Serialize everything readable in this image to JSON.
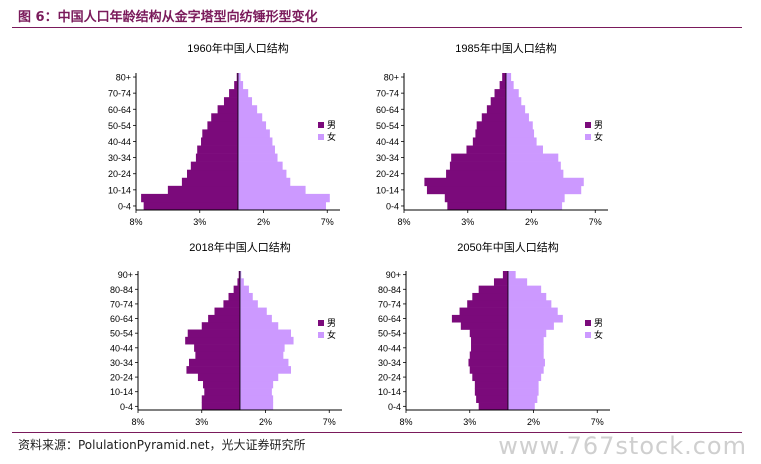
{
  "header": {
    "title": "图 6：中国人口年龄结构从金字塔型向纺锤形型变化"
  },
  "footer": {
    "source": "资料来源：PolulationPyramid.net，光大证券研究所"
  },
  "watermark": {
    "text": "www.767stock.com"
  },
  "colors": {
    "male": "#7b0a7b",
    "female": "#cc99ff",
    "accent": "#7a1a5b"
  },
  "chart_data": [
    {
      "type": "bar",
      "title": "1960年中国人口结构",
      "categories": [
        "0-4",
        "5-9",
        "10-14",
        "15-19",
        "20-24",
        "25-29",
        "30-34",
        "35-39",
        "40-44",
        "45-49",
        "50-54",
        "55-59",
        "60-64",
        "65-69",
        "70-74",
        "75-79",
        "80+"
      ],
      "tick_labels_y": [
        "0-4",
        "10-14",
        "20-24",
        "30-34",
        "40-44",
        "50-54",
        "60-64",
        "70-74",
        "80+"
      ],
      "tick_labels_x": [
        "8%",
        "3%",
        "2%",
        "7%"
      ],
      "xlim": [
        -8,
        8
      ],
      "legend": [
        "男",
        "女"
      ],
      "legend_position": "right",
      "series": [
        {
          "name": "男",
          "values": [
            7.4,
            7.6,
            5.5,
            4.4,
            4.0,
            3.7,
            3.3,
            3.2,
            2.9,
            2.8,
            2.4,
            2.1,
            1.6,
            1.1,
            0.7,
            0.3,
            0.1
          ]
        },
        {
          "name": "女",
          "values": [
            6.9,
            7.2,
            5.3,
            4.1,
            3.8,
            3.5,
            3.1,
            2.9,
            2.7,
            2.5,
            2.2,
            1.9,
            1.5,
            1.1,
            0.8,
            0.4,
            0.2
          ]
        }
      ]
    },
    {
      "type": "bar",
      "title": "1985年中国人口结构",
      "categories": [
        "0-4",
        "5-9",
        "10-14",
        "15-19",
        "20-24",
        "25-29",
        "30-34",
        "35-39",
        "40-44",
        "45-49",
        "50-54",
        "55-59",
        "60-64",
        "65-69",
        "70-74",
        "75-79",
        "80+"
      ],
      "tick_labels_y": [
        "0-4",
        "10-14",
        "20-24",
        "30-34",
        "40-44",
        "50-54",
        "60-64",
        "70-74",
        "80+"
      ],
      "tick_labels_x": [
        "8%",
        "3%",
        "2%",
        "7%"
      ],
      "xlim": [
        -8,
        8
      ],
      "legend": [
        "男",
        "女"
      ],
      "legend_position": "right",
      "series": [
        {
          "name": "男",
          "values": [
            4.6,
            4.8,
            6.2,
            6.4,
            4.7,
            4.4,
            4.3,
            3.1,
            2.6,
            2.4,
            2.3,
            1.9,
            1.5,
            1.2,
            0.9,
            0.5,
            0.3
          ]
        },
        {
          "name": "女",
          "values": [
            4.4,
            4.6,
            5.9,
            6.1,
            4.5,
            4.3,
            4.1,
            2.9,
            2.4,
            2.2,
            2.1,
            1.8,
            1.5,
            1.2,
            1.0,
            0.6,
            0.4
          ]
        }
      ]
    },
    {
      "type": "bar",
      "title": "2018年中国人口结构",
      "categories": [
        "0-4",
        "5-9",
        "10-14",
        "15-19",
        "20-24",
        "25-29",
        "30-34",
        "35-39",
        "40-44",
        "45-49",
        "50-54",
        "55-59",
        "60-64",
        "65-69",
        "70-74",
        "75-79",
        "80-84",
        "85-89",
        "90+"
      ],
      "tick_labels_y": [
        "0-4",
        "10-14",
        "20-24",
        "30-34",
        "40-44",
        "50-54",
        "60-64",
        "70-74",
        "80-84",
        "90+"
      ],
      "tick_labels_x": [
        "8%",
        "3%",
        "2%",
        "7%"
      ],
      "xlim": [
        -8,
        8
      ],
      "legend": [
        "男",
        "女"
      ],
      "legend_position": "right",
      "series": [
        {
          "name": "男",
          "values": [
            3.0,
            3.0,
            2.8,
            2.9,
            3.3,
            4.2,
            4.0,
            3.5,
            3.6,
            4.3,
            4.1,
            3.0,
            2.5,
            2.0,
            1.3,
            0.9,
            0.5,
            0.2,
            0.1
          ]
        },
        {
          "name": "女",
          "values": [
            2.6,
            2.6,
            2.5,
            2.6,
            3.0,
            4.0,
            3.8,
            3.4,
            3.5,
            4.2,
            4.0,
            3.0,
            2.5,
            2.1,
            1.4,
            1.0,
            0.7,
            0.3,
            0.1
          ]
        }
      ]
    },
    {
      "type": "bar",
      "title": "2050年中国人口结构",
      "categories": [
        "0-4",
        "5-9",
        "10-14",
        "15-19",
        "20-24",
        "25-29",
        "30-34",
        "35-39",
        "40-44",
        "45-49",
        "50-54",
        "55-59",
        "60-64",
        "65-69",
        "70-74",
        "75-79",
        "80-84",
        "85-89",
        "90+"
      ],
      "tick_labels_y": [
        "0-4",
        "10-14",
        "20-24",
        "30-34",
        "40-44",
        "50-54",
        "60-64",
        "70-74",
        "80-84",
        "90+"
      ],
      "tick_labels_x": [
        "8%",
        "3%",
        "2%",
        "7%"
      ],
      "xlim": [
        -8,
        8
      ],
      "legend": [
        "男",
        "女"
      ],
      "legend_position": "right",
      "series": [
        {
          "name": "男",
          "values": [
            2.3,
            2.5,
            2.6,
            2.6,
            2.8,
            3.0,
            3.1,
            3.0,
            2.9,
            2.9,
            3.0,
            3.7,
            4.4,
            3.8,
            3.2,
            2.8,
            2.3,
            1.1,
            0.4
          ]
        },
        {
          "name": "女",
          "values": [
            2.1,
            2.3,
            2.4,
            2.4,
            2.6,
            2.8,
            2.9,
            2.8,
            2.8,
            2.8,
            3.0,
            3.6,
            4.3,
            3.9,
            3.4,
            3.0,
            2.6,
            1.5,
            0.6
          ]
        }
      ]
    }
  ]
}
